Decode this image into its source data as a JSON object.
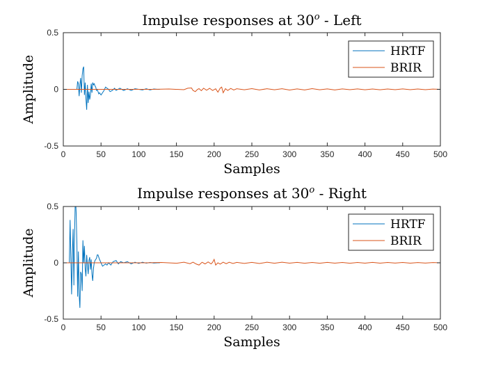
{
  "chart_data": [
    {
      "type": "line",
      "title": "Impulse responses at 30",
      "title_superscript": "o",
      "title_suffix": " - Left",
      "xlabel": "Samples",
      "ylabel": "Amplitude",
      "xlim": [
        0,
        500
      ],
      "ylim": [
        -0.5,
        0.5
      ],
      "xticks": [
        "0",
        "50",
        "100",
        "150",
        "200",
        "250",
        "300",
        "350",
        "400",
        "450",
        "500"
      ],
      "yticks": [
        "0.5",
        "0",
        "-0.5"
      ],
      "legend_position": "top-right",
      "series": [
        {
          "name": "HRTF",
          "color": "#0072BD",
          "x": [
            0,
            18,
            19,
            20,
            21,
            22,
            23,
            24,
            25,
            26,
            27,
            28,
            29,
            30,
            31,
            32,
            33,
            34,
            35,
            36,
            37,
            38,
            39,
            40,
            41,
            42,
            43,
            44,
            45,
            46,
            47,
            48,
            50,
            52,
            54,
            56,
            58,
            60,
            62,
            65,
            68,
            70,
            75,
            80,
            85,
            90,
            95,
            100,
            105,
            110,
            115,
            120,
            125,
            128
          ],
          "y": [
            0,
            0,
            0.07,
            0.05,
            -0.06,
            0.04,
            0.1,
            -0.03,
            0.12,
            0.18,
            0.2,
            -0.05,
            0.06,
            -0.08,
            -0.18,
            0.04,
            -0.12,
            -0.02,
            -0.09,
            -0.05,
            0.05,
            -0.03,
            0.06,
            0.04,
            0.05,
            0.03,
            0.02,
            -0.01,
            0.0,
            -0.02,
            -0.04,
            -0.03,
            -0.05,
            -0.03,
            -0.01,
            0.02,
            0.01,
            0.0,
            -0.02,
            -0.01,
            0.01,
            -0.01,
            0.01,
            -0.01,
            0.005,
            -0.01,
            0.005,
            0.0,
            -0.005,
            0.005,
            -0.005,
            0.003,
            0.0,
            0.0
          ]
        },
        {
          "name": "BRIR",
          "color": "#D95319",
          "x": [
            0,
            120,
            140,
            160,
            165,
            170,
            172,
            175,
            178,
            180,
            183,
            186,
            190,
            194,
            198,
            202,
            205,
            208,
            210,
            212,
            215,
            218,
            222,
            226,
            230,
            240,
            250,
            260,
            270,
            280,
            290,
            300,
            310,
            320,
            330,
            340,
            350,
            360,
            370,
            380,
            390,
            400,
            410,
            420,
            430,
            440,
            450,
            460,
            470,
            480,
            490,
            500
          ],
          "y": [
            0,
            0,
            0.003,
            -0.003,
            0.01,
            0.012,
            -0.01,
            -0.02,
            0.0,
            0.006,
            -0.012,
            0.01,
            -0.008,
            0.009,
            -0.01,
            0.005,
            -0.025,
            0.01,
            0.02,
            -0.03,
            0.006,
            -0.01,
            0.008,
            -0.006,
            0.005,
            -0.004,
            0.006,
            -0.005,
            0.005,
            -0.004,
            0.005,
            -0.006,
            0.004,
            -0.005,
            0.006,
            -0.004,
            0.004,
            -0.005,
            0.004,
            -0.003,
            0.004,
            -0.004,
            0.003,
            -0.004,
            0.003,
            -0.003,
            0.004,
            -0.003,
            0.003,
            -0.003,
            0.002,
            0.0
          ]
        }
      ]
    },
    {
      "type": "line",
      "title": "Impulse responses at 30",
      "title_superscript": "o",
      "title_suffix": " - Right",
      "xlabel": "Samples",
      "ylabel": "Amplitude",
      "xlim": [
        0,
        500
      ],
      "ylim": [
        -0.5,
        0.5
      ],
      "xticks": [
        "0",
        "50",
        "100",
        "150",
        "200",
        "250",
        "300",
        "350",
        "400",
        "450",
        "500"
      ],
      "yticks": [
        "0.5",
        "0",
        "-0.5"
      ],
      "legend_position": "top-right",
      "series": [
        {
          "name": "HRTF",
          "color": "#0072BD",
          "x": [
            0,
            8,
            9,
            10,
            11,
            12,
            13,
            14,
            15,
            16,
            17,
            18,
            19,
            20,
            21,
            22,
            23,
            24,
            25,
            26,
            27,
            28,
            29,
            30,
            31,
            32,
            33,
            34,
            35,
            36,
            37,
            38,
            39,
            40,
            41,
            42,
            43,
            44,
            45,
            46,
            48,
            50,
            52,
            54,
            56,
            58,
            60,
            63,
            66,
            70,
            73,
            76,
            80,
            85,
            90,
            95,
            100,
            105,
            110,
            115,
            120,
            125,
            128
          ],
          "y": [
            0,
            0,
            0.38,
            0.05,
            -0.28,
            0.08,
            0.3,
            -0.2,
            0.28,
            0.6,
            0.45,
            0.18,
            -0.3,
            0.1,
            -0.28,
            -0.4,
            -0.08,
            -0.1,
            -0.25,
            0.2,
            0.0,
            0.15,
            -0.05,
            -0.12,
            0.07,
            -0.02,
            -0.1,
            0.02,
            0.05,
            -0.06,
            0.03,
            -0.1,
            -0.16,
            -0.05,
            0.0,
            0.02,
            0.03,
            0.04,
            0.07,
            0.07,
            0.03,
            0.0,
            -0.03,
            -0.02,
            -0.01,
            -0.02,
            0.0,
            -0.02,
            0.01,
            0.02,
            -0.01,
            0.01,
            0.0,
            0.01,
            -0.01,
            0.005,
            -0.005,
            0.005,
            -0.003,
            0.003,
            -0.002,
            0.0,
            0.0
          ]
        },
        {
          "name": "BRIR",
          "color": "#D95319",
          "x": [
            0,
            110,
            130,
            150,
            160,
            168,
            172,
            176,
            180,
            184,
            188,
            192,
            196,
            198,
            200,
            202,
            205,
            208,
            212,
            216,
            220,
            225,
            230,
            240,
            250,
            260,
            270,
            280,
            290,
            300,
            310,
            320,
            330,
            340,
            350,
            360,
            370,
            380,
            390,
            400,
            410,
            420,
            430,
            440,
            450,
            460,
            470,
            480,
            490,
            500
          ],
          "y": [
            0,
            0,
            0.003,
            -0.004,
            0.005,
            -0.008,
            0.006,
            -0.01,
            -0.02,
            0.005,
            -0.01,
            0.008,
            -0.01,
            0.005,
            0.03,
            -0.02,
            0.0,
            -0.012,
            0.006,
            -0.008,
            0.005,
            -0.006,
            0.004,
            -0.005,
            0.004,
            -0.006,
            0.005,
            -0.004,
            0.005,
            -0.003,
            0.004,
            -0.004,
            0.003,
            -0.004,
            0.004,
            -0.003,
            0.003,
            -0.004,
            0.003,
            -0.003,
            0.004,
            -0.003,
            0.003,
            -0.002,
            0.003,
            -0.003,
            0.002,
            -0.002,
            0.002,
            0.0
          ]
        }
      ]
    }
  ]
}
